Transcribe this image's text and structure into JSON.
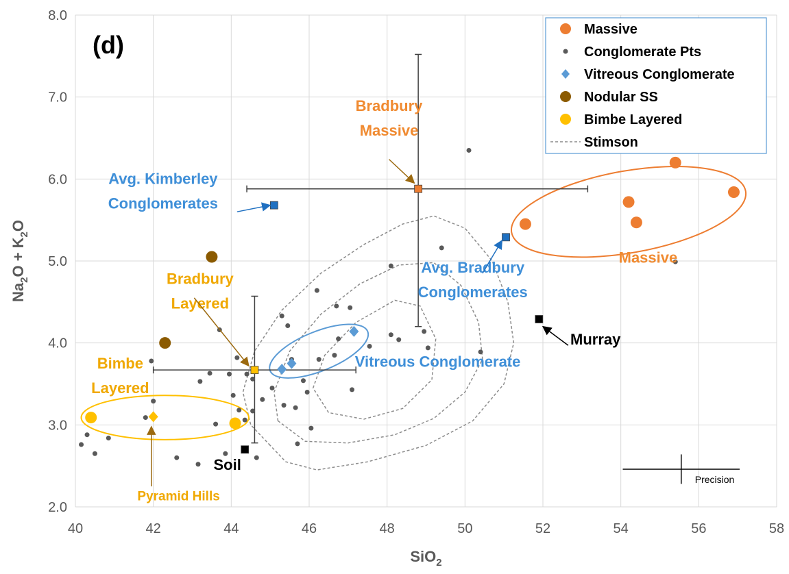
{
  "chart_data": {
    "type": "scatter",
    "panel_label": "(d)",
    "xlabel": "SiO",
    "xlabel_sub": "2",
    "ylabel_parts": [
      "Na",
      "2",
      "O + K",
      "2",
      "O"
    ],
    "xlim": [
      40,
      58
    ],
    "ylim": [
      2.0,
      8.0
    ],
    "xticks": [
      40,
      42,
      44,
      46,
      48,
      50,
      52,
      54,
      56,
      58
    ],
    "yticks": [
      2.0,
      3.0,
      4.0,
      5.0,
      6.0,
      7.0,
      8.0
    ],
    "grid": true,
    "legend_position": "top-right",
    "colors": {
      "massive": "#ED7D31",
      "conglomerate": "#595959",
      "vitreous": "#5B9BD5",
      "nodular": "#8B5A00",
      "bimbe": "#FFC000",
      "label_blue": "#3F8FD8",
      "label_orange": "#F08A30",
      "label_gold": "#F0A800",
      "errorbar": "#404040",
      "stimson": "#8C8C8C",
      "avg_blue": "#1F70C1",
      "grid": "#D9D9D9"
    },
    "legend": [
      {
        "key": "massive",
        "label": "Massive",
        "marker": "circle"
      },
      {
        "key": "conglomerate",
        "label": "Conglomerate Pts",
        "marker": "dot"
      },
      {
        "key": "vitreous",
        "label": "Vitreous Conglomerate",
        "marker": "diamond"
      },
      {
        "key": "nodular",
        "label": "Nodular SS",
        "marker": "circle"
      },
      {
        "key": "bimbe",
        "label": "Bimbe Layered",
        "marker": "circle"
      },
      {
        "key": "stimson",
        "label": "Stimson",
        "marker": "dashed"
      }
    ],
    "series": [
      {
        "name": "Massive",
        "key": "massive",
        "marker": "circle",
        "points": [
          [
            51.55,
            5.45
          ],
          [
            54.2,
            5.72
          ],
          [
            54.4,
            5.47
          ],
          [
            55.4,
            6.2
          ],
          [
            56.9,
            5.84
          ]
        ]
      },
      {
        "name": "Conglomerate Pts",
        "key": "conglomerate",
        "marker": "dot",
        "points": [
          [
            40.15,
            2.76
          ],
          [
            40.3,
            2.88
          ],
          [
            40.5,
            2.65
          ],
          [
            40.85,
            2.84
          ],
          [
            41.95,
            3.78
          ],
          [
            41.8,
            3.09
          ],
          [
            42.0,
            3.29
          ],
          [
            42.6,
            2.6
          ],
          [
            43.15,
            2.52
          ],
          [
            43.2,
            3.53
          ],
          [
            43.45,
            3.63
          ],
          [
            43.6,
            3.01
          ],
          [
            43.7,
            4.16
          ],
          [
            43.85,
            2.65
          ],
          [
            43.95,
            3.62
          ],
          [
            44.05,
            3.36
          ],
          [
            44.15,
            3.82
          ],
          [
            44.2,
            3.18
          ],
          [
            44.35,
            3.06
          ],
          [
            44.4,
            3.62
          ],
          [
            44.55,
            3.17
          ],
          [
            44.55,
            3.56
          ],
          [
            44.65,
            2.6
          ],
          [
            44.8,
            3.31
          ],
          [
            45.05,
            3.45
          ],
          [
            45.3,
            4.33
          ],
          [
            45.35,
            3.24
          ],
          [
            45.45,
            4.21
          ],
          [
            45.55,
            3.8
          ],
          [
            45.65,
            3.21
          ],
          [
            45.7,
            2.77
          ],
          [
            45.85,
            3.54
          ],
          [
            45.95,
            3.4
          ],
          [
            46.05,
            2.96
          ],
          [
            46.2,
            4.64
          ],
          [
            46.25,
            3.8
          ],
          [
            46.65,
            3.85
          ],
          [
            46.7,
            4.45
          ],
          [
            46.75,
            4.05
          ],
          [
            47.05,
            4.43
          ],
          [
            47.1,
            3.43
          ],
          [
            47.15,
            4.14
          ],
          [
            47.55,
            3.96
          ],
          [
            48.1,
            4.94
          ],
          [
            48.1,
            4.1
          ],
          [
            48.3,
            4.04
          ],
          [
            48.95,
            4.14
          ],
          [
            49.05,
            3.94
          ],
          [
            49.4,
            5.16
          ],
          [
            50.1,
            6.35
          ],
          [
            50.4,
            3.89
          ],
          [
            55.4,
            4.99
          ]
        ]
      },
      {
        "name": "Vitreous Conglomerate",
        "key": "vitreous",
        "marker": "diamond",
        "points": [
          [
            45.3,
            3.68
          ],
          [
            45.55,
            3.75
          ],
          [
            47.15,
            4.14
          ]
        ]
      },
      {
        "name": "Nodular SS",
        "key": "nodular",
        "marker": "circle",
        "points": [
          [
            43.5,
            5.05
          ],
          [
            42.3,
            4.0
          ]
        ]
      },
      {
        "name": "Bimbe Layered",
        "key": "bimbe",
        "marker": "circle",
        "points": [
          [
            40.4,
            3.09
          ],
          [
            44.1,
            3.02
          ]
        ]
      }
    ],
    "special_points": [
      {
        "key": "avg_kimberley",
        "marker": "square",
        "color": "#1F70C1",
        "x": 45.1,
        "y": 5.68
      },
      {
        "key": "avg_bradbury",
        "marker": "square",
        "color": "#1F70C1",
        "x": 51.05,
        "y": 5.29
      },
      {
        "key": "bradbury_massive",
        "marker": "square",
        "color": "#ED7D31",
        "x": 48.8,
        "y": 5.88
      },
      {
        "key": "bradbury_layered",
        "marker": "square",
        "color": "#FFC000",
        "x": 44.6,
        "y": 3.67
      },
      {
        "key": "pyramid_hills",
        "marker": "diamond",
        "color": "#FFC000",
        "x": 42.0,
        "y": 3.1
      },
      {
        "key": "murray",
        "marker": "square",
        "color": "#000000",
        "x": 51.9,
        "y": 4.29
      },
      {
        "key": "soil",
        "marker": "square",
        "color": "#000000",
        "x": 44.35,
        "y": 2.7
      }
    ],
    "error_bars": [
      {
        "x": 48.8,
        "y": 5.88,
        "xerr": [
          44.4,
          53.15
        ],
        "yerr": [
          4.2,
          7.52
        ]
      },
      {
        "x": 44.6,
        "y": 3.67,
        "xerr": [
          42.0,
          47.2
        ],
        "yerr": [
          2.78,
          4.57
        ]
      }
    ],
    "precision": {
      "x": 55.55,
      "y": 2.46,
      "xerr": [
        54.05,
        57.05
      ],
      "yerr": [
        2.28,
        2.64
      ],
      "label": "Precision"
    },
    "ellipses": [
      {
        "key": "massive",
        "cx": 54.2,
        "cy": 5.6,
        "rx": 3.05,
        "ry": 0.5,
        "rot": -10
      },
      {
        "key": "vitreous",
        "cx": 46.25,
        "cy": 3.9,
        "rx": 1.35,
        "ry": 0.24,
        "rot": -22
      },
      {
        "key": "bimbe",
        "cx": 42.3,
        "cy": 3.09,
        "rx": 2.15,
        "ry": 0.27,
        "rot": 0
      }
    ],
    "stimson_contours": [
      [
        [
          45.0,
          2.75
        ],
        [
          44.5,
          3.0
        ],
        [
          44.3,
          3.4
        ],
        [
          44.6,
          3.9
        ],
        [
          45.3,
          4.4
        ],
        [
          46.3,
          4.85
        ],
        [
          47.4,
          5.2
        ],
        [
          48.4,
          5.45
        ],
        [
          49.2,
          5.55
        ],
        [
          50.0,
          5.4
        ],
        [
          50.7,
          5.0
        ],
        [
          51.1,
          4.5
        ],
        [
          51.25,
          4.0
        ],
        [
          51.0,
          3.5
        ],
        [
          50.2,
          3.05
        ],
        [
          49.0,
          2.75
        ],
        [
          47.5,
          2.55
        ],
        [
          46.2,
          2.45
        ],
        [
          45.4,
          2.55
        ],
        [
          45.0,
          2.75
        ]
      ],
      [
        [
          45.2,
          3.05
        ],
        [
          45.1,
          3.4
        ],
        [
          45.5,
          3.9
        ],
        [
          46.3,
          4.35
        ],
        [
          47.3,
          4.72
        ],
        [
          48.3,
          4.95
        ],
        [
          49.2,
          4.98
        ],
        [
          49.9,
          4.7
        ],
        [
          50.35,
          4.25
        ],
        [
          50.45,
          3.8
        ],
        [
          50.0,
          3.4
        ],
        [
          49.2,
          3.08
        ],
        [
          48.2,
          2.88
        ],
        [
          47.0,
          2.78
        ],
        [
          45.9,
          2.8
        ],
        [
          45.2,
          3.05
        ]
      ],
      [
        [
          46.1,
          3.45
        ],
        [
          46.4,
          3.85
        ],
        [
          47.2,
          4.25
        ],
        [
          48.2,
          4.52
        ],
        [
          48.85,
          4.45
        ],
        [
          49.25,
          4.05
        ],
        [
          49.15,
          3.55
        ],
        [
          48.4,
          3.2
        ],
        [
          47.4,
          3.07
        ],
        [
          46.5,
          3.15
        ],
        [
          46.1,
          3.45
        ]
      ]
    ],
    "annotations": [
      {
        "key": "bradbury_massive_label",
        "lines": [
          "Bradbury",
          "Massive"
        ],
        "color_key": "label_orange",
        "x": 48.05,
        "y": 6.83,
        "anchor": "middle",
        "arrow_from": [
          48.05,
          6.24
        ],
        "arrow_to": [
          48.7,
          5.95
        ]
      },
      {
        "key": "avg_kimberley_label",
        "lines": [
          "Avg. Kimberley",
          "Conglomerates"
        ],
        "color_key": "label_blue",
        "x": 42.25,
        "y": 5.94,
        "anchor": "middle",
        "arrow_from": [
          44.15,
          5.6
        ],
        "arrow_to": [
          45.0,
          5.68
        ]
      },
      {
        "key": "massive_label",
        "lines": [
          "Massive"
        ],
        "color_key": "label_orange",
        "x": 54.7,
        "y": 4.98,
        "anchor": "middle"
      },
      {
        "key": "avg_bradbury_label",
        "lines": [
          "Avg. Bradbury",
          "Conglomerates"
        ],
        "color_key": "label_blue",
        "x": 50.2,
        "y": 4.86,
        "anchor": "middle",
        "arrow_from": [
          50.45,
          4.85
        ],
        "arrow_to": [
          50.95,
          5.25
        ]
      },
      {
        "key": "murray_label",
        "lines": [
          "Murray"
        ],
        "color_key": "black",
        "x": 53.35,
        "y": 3.98,
        "anchor": "middle",
        "arrow_from": [
          52.65,
          3.97
        ],
        "arrow_to": [
          52.0,
          4.2
        ]
      },
      {
        "key": "bradbury_layered_label",
        "lines": [
          "Bradbury",
          "Layered"
        ],
        "color_key": "label_gold",
        "x": 43.2,
        "y": 4.72,
        "anchor": "middle",
        "arrow_from": [
          43.05,
          4.55
        ],
        "arrow_to": [
          44.45,
          3.72
        ]
      },
      {
        "key": "vitreous_label",
        "lines": [
          "Vitreous Conglomerate"
        ],
        "color_key": "label_blue",
        "x": 49.3,
        "y": 3.71,
        "anchor": "middle"
      },
      {
        "key": "bimbe_label",
        "lines": [
          "Bimbe",
          "Layered"
        ],
        "color_key": "label_gold",
        "x": 41.15,
        "y": 3.69,
        "anchor": "middle"
      },
      {
        "key": "soil_label",
        "lines": [
          "Soil"
        ],
        "color_key": "black",
        "x": 43.9,
        "y": 2.45,
        "anchor": "middle"
      },
      {
        "key": "pyramid_hills_label",
        "lines": [
          "Pyramid Hills"
        ],
        "color_key": "label_gold",
        "x": 42.65,
        "y": 2.08,
        "anchor": "middle",
        "small": true,
        "arrow_from": [
          41.95,
          2.25
        ],
        "arrow_to": [
          41.95,
          2.98
        ]
      }
    ]
  }
}
